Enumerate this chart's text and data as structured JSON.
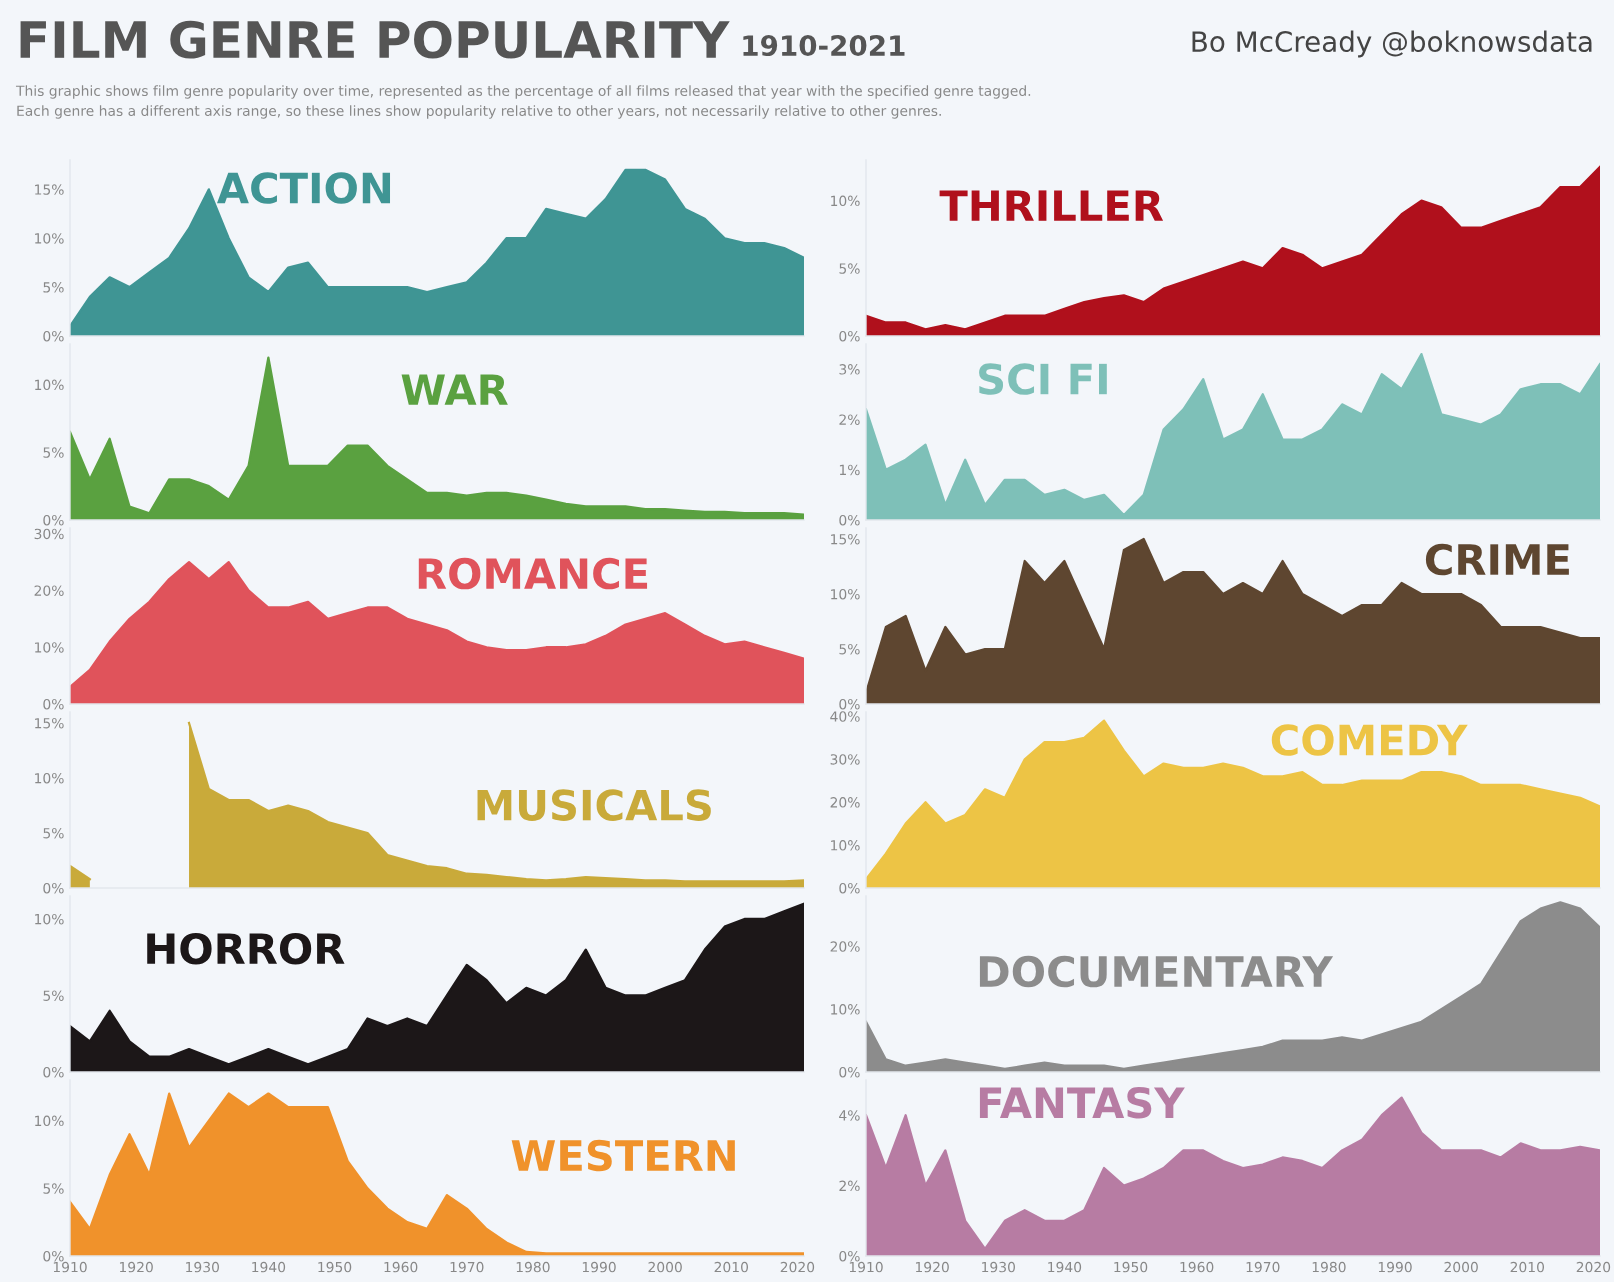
{
  "chart_data": [
    {
      "type": "area",
      "title": "ACTION",
      "annotations": [
        "FILM GENRE POPULARITY",
        "1910-2021",
        "Bo McCready @boknowsdata",
        "This graphic shows film genre popularity over time, represented as the percentage of all films released that year with the specified genre tagged.",
        "Each genre has a different axis range, so these lines show popularity relative to other years, not necessarily relative to other genres."
      ],
      "x": [
        1910,
        1913,
        1916,
        1919,
        1922,
        1925,
        1928,
        1931,
        1934,
        1937,
        1940,
        1943,
        1946,
        1949,
        1952,
        1955,
        1958,
        1961,
        1964,
        1967,
        1970,
        1973,
        1976,
        1979,
        1982,
        1985,
        1988,
        1991,
        1994,
        1997,
        2000,
        2003,
        2006,
        2009,
        2012,
        2015,
        2018,
        2021
      ],
      "series": [
        {
          "color": "#3f9594",
          "values": [
            1,
            4,
            6,
            5,
            6.5,
            8,
            11,
            15,
            10,
            6,
            4.5,
            7,
            7.5,
            5,
            5,
            5,
            5,
            5,
            4.5,
            5,
            5.5,
            7.5,
            10,
            10,
            13,
            12.5,
            12,
            14,
            17,
            17,
            16,
            13,
            12,
            10,
            9.5,
            9.5,
            9,
            8
          ]
        }
      ],
      "xlim": [
        1910,
        2021
      ],
      "ylim": [
        0,
        18
      ],
      "yticks": [
        {
          "value": 0,
          "label": "0%"
        },
        {
          "value": 5,
          "label": "5%"
        },
        {
          "value": 10,
          "label": "10%"
        },
        {
          "value": 15,
          "label": "15%"
        }
      ],
      "tick_labels": "y"
    },
    {
      "type": "area",
      "title": "THRILLER",
      "x": [
        1910,
        1913,
        1916,
        1919,
        1922,
        1925,
        1928,
        1931,
        1934,
        1937,
        1940,
        1943,
        1946,
        1949,
        1952,
        1955,
        1958,
        1961,
        1964,
        1967,
        1970,
        1973,
        1976,
        1979,
        1982,
        1985,
        1988,
        1991,
        1994,
        1997,
        2000,
        2003,
        2006,
        2009,
        2012,
        2015,
        2018,
        2021
      ],
      "series": [
        {
          "color": "#b0101c",
          "values": [
            1.5,
            1,
            1,
            0.5,
            0.8,
            0.5,
            1,
            1.5,
            1.5,
            1.5,
            2,
            2.5,
            2.8,
            3,
            2.5,
            3.5,
            4,
            4.5,
            5,
            5.5,
            5,
            6.5,
            6,
            5,
            5.5,
            6,
            7.5,
            9,
            10,
            9.5,
            8,
            8,
            8.5,
            9,
            9.5,
            11,
            11,
            12.5
          ]
        }
      ],
      "xlim": [
        1910,
        2021
      ],
      "ylim": [
        0,
        13
      ],
      "yticks": [
        {
          "value": 0,
          "label": "0%"
        },
        {
          "value": 5,
          "label": "5%"
        },
        {
          "value": 10,
          "label": "10%"
        }
      ],
      "tick_labels": "y"
    },
    {
      "type": "area",
      "title": "WAR",
      "x": [
        1910,
        1913,
        1916,
        1919,
        1922,
        1925,
        1928,
        1931,
        1934,
        1937,
        1940,
        1943,
        1946,
        1949,
        1952,
        1955,
        1958,
        1961,
        1964,
        1967,
        1970,
        1973,
        1976,
        1979,
        1982,
        1985,
        1988,
        1991,
        1994,
        1997,
        2000,
        2003,
        2006,
        2009,
        2012,
        2015,
        2018,
        2021
      ],
      "series": [
        {
          "color": "#5aa140",
          "values": [
            6.5,
            3,
            6,
            1,
            0.5,
            3,
            3,
            2.5,
            1.5,
            4,
            12,
            4,
            4,
            4,
            5.5,
            5.5,
            4,
            3,
            2,
            2,
            1.8,
            2,
            2,
            1.8,
            1.5,
            1.2,
            1,
            1,
            1,
            0.8,
            0.8,
            0.7,
            0.6,
            0.6,
            0.5,
            0.5,
            0.5,
            0.4
          ]
        }
      ],
      "xlim": [
        1910,
        2021
      ],
      "ylim": [
        0,
        13
      ],
      "yticks": [
        {
          "value": 0,
          "label": "0%"
        },
        {
          "value": 5,
          "label": "5%"
        },
        {
          "value": 10,
          "label": "10%"
        }
      ],
      "tick_labels": "y"
    },
    {
      "type": "area",
      "title": "SCI FI",
      "x": [
        1910,
        1913,
        1916,
        1919,
        1922,
        1925,
        1928,
        1931,
        1934,
        1937,
        1940,
        1943,
        1946,
        1949,
        1952,
        1955,
        1958,
        1961,
        1964,
        1967,
        1970,
        1973,
        1976,
        1979,
        1982,
        1985,
        1988,
        1991,
        1994,
        1997,
        2000,
        2003,
        2006,
        2009,
        2012,
        2015,
        2018,
        2021
      ],
      "series": [
        {
          "color": "#7ec0b8",
          "values": [
            2.2,
            1,
            1.2,
            1.5,
            0.3,
            1.2,
            0.3,
            0.8,
            0.8,
            0.5,
            0.6,
            0.4,
            0.5,
            0.1,
            0.5,
            1.8,
            2.2,
            2.8,
            1.6,
            1.8,
            2.5,
            1.6,
            1.6,
            1.8,
            2.3,
            2.1,
            2.9,
            2.6,
            3.3,
            2.1,
            2,
            1.9,
            2.1,
            2.6,
            2.7,
            2.7,
            2.5,
            3.1
          ]
        }
      ],
      "xlim": [
        1910,
        2021
      ],
      "ylim": [
        0,
        3.5
      ],
      "yticks": [
        {
          "value": 0,
          "label": "0%"
        },
        {
          "value": 1,
          "label": "1%"
        },
        {
          "value": 2,
          "label": "2%"
        },
        {
          "value": 3,
          "label": "3%"
        }
      ],
      "tick_labels": "y"
    },
    {
      "type": "area",
      "title": "ROMANCE",
      "x": [
        1910,
        1913,
        1916,
        1919,
        1922,
        1925,
        1928,
        1931,
        1934,
        1937,
        1940,
        1943,
        1946,
        1949,
        1952,
        1955,
        1958,
        1961,
        1964,
        1967,
        1970,
        1973,
        1976,
        1979,
        1982,
        1985,
        1988,
        1991,
        1994,
        1997,
        2000,
        2003,
        2006,
        2009,
        2012,
        2015,
        2018,
        2021
      ],
      "series": [
        {
          "color": "#e0535b",
          "values": [
            3,
            6,
            11,
            15,
            18,
            22,
            25,
            22,
            25,
            20,
            17,
            17,
            18,
            15,
            16,
            17,
            17,
            15,
            14,
            13,
            11,
            10,
            9.5,
            9.5,
            10,
            10,
            10.5,
            12,
            14,
            15,
            16,
            14,
            12,
            10.5,
            11,
            10,
            9,
            8
          ]
        }
      ],
      "xlim": [
        1910,
        2021
      ],
      "ylim": [
        0,
        31
      ],
      "yticks": [
        {
          "value": 0,
          "label": "0%"
        },
        {
          "value": 10,
          "label": "10%"
        },
        {
          "value": 20,
          "label": "20%"
        },
        {
          "value": 30,
          "label": "30%"
        }
      ],
      "tick_labels": "y"
    },
    {
      "type": "area",
      "title": "CRIME",
      "x": [
        1910,
        1913,
        1916,
        1919,
        1922,
        1925,
        1928,
        1931,
        1934,
        1937,
        1940,
        1943,
        1946,
        1949,
        1952,
        1955,
        1958,
        1961,
        1964,
        1967,
        1970,
        1973,
        1976,
        1979,
        1982,
        1985,
        1988,
        1991,
        1994,
        1997,
        2000,
        2003,
        2006,
        2009,
        2012,
        2015,
        2018,
        2021
      ],
      "series": [
        {
          "color": "#5e4630",
          "values": [
            1,
            7,
            8,
            3,
            7,
            4.5,
            5,
            5,
            13,
            11,
            13,
            9,
            5,
            14,
            15,
            11,
            12,
            12,
            10,
            11,
            10,
            13,
            10,
            9,
            8,
            9,
            9,
            11,
            10,
            10,
            10,
            9,
            7,
            7,
            7,
            6.5,
            6,
            6
          ]
        }
      ],
      "xlim": [
        1910,
        2021
      ],
      "ylim": [
        0,
        16
      ],
      "yticks": [
        {
          "value": 0,
          "label": "0%"
        },
        {
          "value": 5,
          "label": "5%"
        },
        {
          "value": 10,
          "label": "10%"
        },
        {
          "value": 15,
          "label": "15%"
        }
      ],
      "tick_labels": "y"
    },
    {
      "type": "area",
      "title": "MUSICALS",
      "x": [
        1910,
        1913,
        1916,
        1919,
        1922,
        1925,
        1928,
        1931,
        1934,
        1937,
        1940,
        1943,
        1946,
        1949,
        1952,
        1955,
        1958,
        1961,
        1964,
        1967,
        1970,
        1973,
        1976,
        1979,
        1982,
        1985,
        1988,
        1991,
        1994,
        1997,
        2000,
        2003,
        2006,
        2009,
        2012,
        2015,
        2018,
        2021
      ],
      "series": [
        {
          "color": "#c9aa3a",
          "values": [
            2,
            0.8,
            null,
            null,
            null,
            null,
            15,
            9,
            8,
            8,
            7,
            7.5,
            7,
            6,
            5.5,
            5,
            3,
            2.5,
            2,
            1.8,
            1.3,
            1.2,
            1,
            0.8,
            0.7,
            0.8,
            1,
            0.9,
            0.8,
            0.7,
            0.7,
            0.6,
            0.6,
            0.6,
            0.6,
            0.6,
            0.6,
            0.7
          ]
        }
      ],
      "xlim": [
        1910,
        2021
      ],
      "ylim": [
        0,
        16
      ],
      "yticks": [
        {
          "value": 0,
          "label": "0%"
        },
        {
          "value": 5,
          "label": "5%"
        },
        {
          "value": 10,
          "label": "10%"
        },
        {
          "value": 15,
          "label": "15%"
        }
      ],
      "tick_labels": "y"
    },
    {
      "type": "area",
      "title": "COMEDY",
      "x": [
        1910,
        1913,
        1916,
        1919,
        1922,
        1925,
        1928,
        1931,
        1934,
        1937,
        1940,
        1943,
        1946,
        1949,
        1952,
        1955,
        1958,
        1961,
        1964,
        1967,
        1970,
        1973,
        1976,
        1979,
        1982,
        1985,
        1988,
        1991,
        1994,
        1997,
        2000,
        2003,
        2006,
        2009,
        2012,
        2015,
        2018,
        2021
      ],
      "series": [
        {
          "color": "#edc445",
          "values": [
            2,
            8,
            15,
            20,
            15,
            17,
            23,
            21,
            30,
            34,
            34,
            35,
            39,
            32,
            26,
            29,
            28,
            28,
            29,
            28,
            26,
            26,
            27,
            24,
            24,
            25,
            25,
            25,
            27,
            27,
            26,
            24,
            24,
            24,
            23,
            22,
            21,
            19
          ]
        }
      ],
      "xlim": [
        1910,
        2021
      ],
      "ylim": [
        0,
        41
      ],
      "yticks": [
        {
          "value": 0,
          "label": "0%"
        },
        {
          "value": 10,
          "label": "10%"
        },
        {
          "value": 20,
          "label": "20%"
        },
        {
          "value": 30,
          "label": "30%"
        },
        {
          "value": 40,
          "label": "40%"
        }
      ],
      "tick_labels": "y"
    },
    {
      "type": "area",
      "title": "HORROR",
      "x": [
        1910,
        1913,
        1916,
        1919,
        1922,
        1925,
        1928,
        1931,
        1934,
        1937,
        1940,
        1943,
        1946,
        1949,
        1952,
        1955,
        1958,
        1961,
        1964,
        1967,
        1970,
        1973,
        1976,
        1979,
        1982,
        1985,
        1988,
        1991,
        1994,
        1997,
        2000,
        2003,
        2006,
        2009,
        2012,
        2015,
        2018,
        2021
      ],
      "series": [
        {
          "color": "#1c1718",
          "values": [
            3,
            2,
            4,
            2,
            1,
            1,
            1.5,
            1,
            0.5,
            1,
            1.5,
            1,
            0.5,
            1,
            1.5,
            3.5,
            3,
            3.5,
            3,
            5,
            7,
            6,
            4.5,
            5.5,
            5,
            6,
            8,
            5.5,
            5,
            5,
            5.5,
            6,
            8,
            9.5,
            10,
            10,
            10.5,
            11
          ]
        }
      ],
      "xlim": [
        1910,
        2021
      ],
      "ylim": [
        0,
        11.5
      ],
      "yticks": [
        {
          "value": 0,
          "label": "0%"
        },
        {
          "value": 5,
          "label": "5%"
        },
        {
          "value": 10,
          "label": "10%"
        }
      ],
      "tick_labels": "y"
    },
    {
      "type": "area",
      "title": "DOCUMENTARY",
      "x": [
        1910,
        1913,
        1916,
        1919,
        1922,
        1925,
        1928,
        1931,
        1934,
        1937,
        1940,
        1943,
        1946,
        1949,
        1952,
        1955,
        1958,
        1961,
        1964,
        1967,
        1970,
        1973,
        1976,
        1979,
        1982,
        1985,
        1988,
        1991,
        1994,
        1997,
        2000,
        2003,
        2006,
        2009,
        2012,
        2015,
        2018,
        2021
      ],
      "series": [
        {
          "color": "#8c8c8c",
          "values": [
            8,
            2,
            1,
            1.5,
            2,
            1.5,
            1,
            0.5,
            1,
            1.5,
            1,
            1,
            1,
            0.5,
            1,
            1.5,
            2,
            2.5,
            3,
            3.5,
            4,
            5,
            5,
            5,
            5.5,
            5,
            6,
            7,
            8,
            10,
            12,
            14,
            19,
            24,
            26,
            27,
            26,
            23
          ]
        }
      ],
      "xlim": [
        1910,
        2021
      ],
      "ylim": [
        0,
        28
      ],
      "yticks": [
        {
          "value": 0,
          "label": "0%"
        },
        {
          "value": 10,
          "label": "10%"
        },
        {
          "value": 20,
          "label": "20%"
        }
      ],
      "tick_labels": "y"
    },
    {
      "type": "area",
      "title": "WESTERN",
      "x": [
        1910,
        1913,
        1916,
        1919,
        1922,
        1925,
        1928,
        1931,
        1934,
        1937,
        1940,
        1943,
        1946,
        1949,
        1952,
        1955,
        1958,
        1961,
        1964,
        1967,
        1970,
        1973,
        1976,
        1979,
        1982,
        1985,
        1988,
        1991,
        1994,
        1997,
        2000,
        2003,
        2006,
        2009,
        2012,
        2015,
        2018,
        2021
      ],
      "series": [
        {
          "color": "#f0922b",
          "values": [
            4,
            2,
            6,
            9,
            6,
            12,
            8,
            10,
            12,
            11,
            12,
            11,
            11,
            11,
            7,
            5,
            3.5,
            2.5,
            2,
            4.5,
            3.5,
            2,
            1,
            0.3,
            0.2,
            0.2,
            0.2,
            0.2,
            0.2,
            0.2,
            0.2,
            0.2,
            0.2,
            0.2,
            0.2,
            0.2,
            0.2,
            0.2
          ]
        }
      ],
      "xlim": [
        1910,
        2021
      ],
      "ylim": [
        0,
        13
      ],
      "xticks": [
        1910,
        1920,
        1930,
        1940,
        1950,
        1960,
        1970,
        1980,
        1990,
        2000,
        2010,
        2020
      ],
      "yticks": [
        {
          "value": 0,
          "label": "0%"
        },
        {
          "value": 5,
          "label": "5%"
        },
        {
          "value": 10,
          "label": "10%"
        }
      ]
    },
    {
      "type": "area",
      "title": "FANTASY",
      "x": [
        1910,
        1913,
        1916,
        1919,
        1922,
        1925,
        1928,
        1931,
        1934,
        1937,
        1940,
        1943,
        1946,
        1949,
        1952,
        1955,
        1958,
        1961,
        1964,
        1967,
        1970,
        1973,
        1976,
        1979,
        1982,
        1985,
        1988,
        1991,
        1994,
        1997,
        2000,
        2003,
        2006,
        2009,
        2012,
        2015,
        2018,
        2021
      ],
      "series": [
        {
          "color": "#b77ca3",
          "values": [
            4,
            2.5,
            4,
            2,
            3,
            1,
            0.2,
            1,
            1.3,
            1,
            1,
            1.3,
            2.5,
            2,
            2.2,
            2.5,
            3,
            3,
            2.7,
            2.5,
            2.6,
            2.8,
            2.7,
            2.5,
            3,
            3.3,
            4,
            4.5,
            3.5,
            3,
            3,
            3,
            2.8,
            3.2,
            3,
            3,
            3.1,
            3
          ]
        }
      ],
      "xlim": [
        1910,
        2021
      ],
      "ylim": [
        0,
        5
      ],
      "xticks": [
        1910,
        1920,
        1930,
        1940,
        1950,
        1960,
        1970,
        1980,
        1990,
        2000,
        2010,
        2020
      ],
      "yticks": [
        {
          "value": 0,
          "label": "0%"
        },
        {
          "value": 2,
          "label": "2%"
        },
        {
          "value": 4,
          "label": "4%"
        }
      ]
    }
  ]
}
